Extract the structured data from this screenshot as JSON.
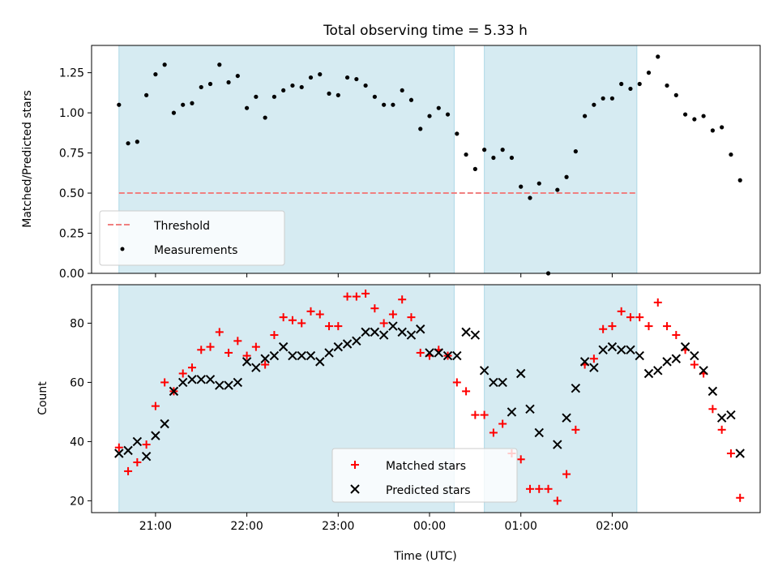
{
  "title": "Total observing time = 5.33 h",
  "colors": {
    "shade": "#add8e6",
    "threshold": "#f08080",
    "matched": "#ff0000",
    "predicted": "#000000",
    "measure": "#000000"
  },
  "chart_data": [
    {
      "type": "scatter",
      "ylabel": "Matched/Predicted stars",
      "ylim": [
        0,
        1.42
      ],
      "yticks": [
        0,
        0.25,
        0.5,
        0.75,
        1.0,
        1.25
      ],
      "ytick_labels": [
        "0.00",
        "0.25",
        "0.50",
        "0.75",
        "1.00",
        "1.25"
      ],
      "threshold": 0.5,
      "legend": {
        "position": "lower-left",
        "entries": [
          "Threshold",
          "Measurements"
        ]
      },
      "measurements": [
        [
          20.6,
          1.05
        ],
        [
          20.7,
          0.81
        ],
        [
          20.8,
          0.82
        ],
        [
          20.9,
          1.11
        ],
        [
          21.0,
          1.24
        ],
        [
          21.1,
          1.3
        ],
        [
          21.2,
          1.0
        ],
        [
          21.3,
          1.05
        ],
        [
          21.4,
          1.06
        ],
        [
          21.5,
          1.16
        ],
        [
          21.6,
          1.18
        ],
        [
          21.7,
          1.3
        ],
        [
          21.8,
          1.19
        ],
        [
          21.9,
          1.23
        ],
        [
          22.0,
          1.03
        ],
        [
          22.1,
          1.1
        ],
        [
          22.2,
          0.97
        ],
        [
          22.3,
          1.1
        ],
        [
          22.4,
          1.14
        ],
        [
          22.5,
          1.17
        ],
        [
          22.6,
          1.16
        ],
        [
          22.7,
          1.22
        ],
        [
          22.8,
          1.24
        ],
        [
          22.9,
          1.12
        ],
        [
          23.0,
          1.11
        ],
        [
          23.1,
          1.22
        ],
        [
          23.2,
          1.21
        ],
        [
          23.3,
          1.17
        ],
        [
          23.4,
          1.1
        ],
        [
          23.5,
          1.05
        ],
        [
          23.6,
          1.05
        ],
        [
          23.7,
          1.14
        ],
        [
          23.8,
          1.08
        ],
        [
          23.9,
          0.9
        ],
        [
          24.0,
          0.98
        ],
        [
          24.1,
          1.03
        ],
        [
          24.2,
          0.99
        ],
        [
          24.3,
          0.87
        ],
        [
          24.4,
          0.74
        ],
        [
          24.5,
          0.65
        ],
        [
          24.6,
          0.77
        ],
        [
          24.7,
          0.72
        ],
        [
          24.8,
          0.77
        ],
        [
          24.9,
          0.72
        ],
        [
          25.0,
          0.54
        ],
        [
          25.1,
          0.47
        ],
        [
          25.2,
          0.56
        ],
        [
          25.3,
          0.0
        ],
        [
          25.4,
          0.52
        ],
        [
          25.5,
          0.6
        ],
        [
          25.6,
          0.76
        ],
        [
          25.7,
          0.98
        ],
        [
          25.8,
          1.05
        ],
        [
          25.9,
          1.09
        ],
        [
          26.0,
          1.09
        ],
        [
          26.1,
          1.18
        ],
        [
          26.2,
          1.15
        ],
        [
          26.3,
          1.18
        ],
        [
          26.4,
          1.25
        ],
        [
          26.5,
          1.35
        ],
        [
          26.6,
          1.17
        ],
        [
          26.7,
          1.11
        ],
        [
          26.8,
          0.99
        ],
        [
          26.9,
          0.96
        ],
        [
          27.0,
          0.98
        ],
        [
          27.1,
          0.89
        ],
        [
          27.2,
          0.91
        ],
        [
          27.3,
          0.74
        ],
        [
          27.4,
          0.58
        ]
      ]
    },
    {
      "type": "scatter",
      "ylabel": "Count",
      "xlabel": "Time (UTC)",
      "ylim": [
        16,
        93
      ],
      "yticks": [
        20,
        40,
        60,
        80
      ],
      "ytick_labels": [
        "20",
        "40",
        "60",
        "80"
      ],
      "xlim": [
        20.3,
        27.62
      ],
      "xticks": [
        21,
        22,
        23,
        24,
        25,
        26
      ],
      "xtick_labels": [
        "21:00",
        "22:00",
        "23:00",
        "00:00",
        "01:00",
        "02:00"
      ],
      "observing_windows": [
        [
          20.6,
          24.27
        ],
        [
          24.6,
          26.27
        ]
      ],
      "legend": {
        "position": "lower-center",
        "entries": [
          "Matched stars",
          "Predicted stars"
        ]
      },
      "matched": [
        [
          20.6,
          38
        ],
        [
          20.7,
          30
        ],
        [
          20.8,
          33
        ],
        [
          20.9,
          39
        ],
        [
          21.0,
          52
        ],
        [
          21.1,
          60
        ],
        [
          21.2,
          57
        ],
        [
          21.3,
          63
        ],
        [
          21.4,
          65
        ],
        [
          21.5,
          71
        ],
        [
          21.6,
          72
        ],
        [
          21.7,
          77
        ],
        [
          21.8,
          70
        ],
        [
          21.9,
          74
        ],
        [
          22.0,
          69
        ],
        [
          22.1,
          72
        ],
        [
          22.2,
          66
        ],
        [
          22.3,
          76
        ],
        [
          22.4,
          82
        ],
        [
          22.5,
          81
        ],
        [
          22.6,
          80
        ],
        [
          22.7,
          84
        ],
        [
          22.8,
          83
        ],
        [
          22.9,
          79
        ],
        [
          23.0,
          79
        ],
        [
          23.1,
          89
        ],
        [
          23.2,
          89
        ],
        [
          23.3,
          90
        ],
        [
          23.4,
          85
        ],
        [
          23.5,
          80
        ],
        [
          23.6,
          83
        ],
        [
          23.7,
          88
        ],
        [
          23.8,
          82
        ],
        [
          23.9,
          70
        ],
        [
          24.0,
          69
        ],
        [
          24.1,
          71
        ],
        [
          24.2,
          69
        ],
        [
          24.3,
          60
        ],
        [
          24.4,
          57
        ],
        [
          24.5,
          49
        ],
        [
          24.6,
          49
        ],
        [
          24.7,
          43
        ],
        [
          24.8,
          46
        ],
        [
          24.9,
          36
        ],
        [
          25.0,
          34
        ],
        [
          25.1,
          24
        ],
        [
          25.2,
          24
        ],
        [
          25.3,
          24
        ],
        [
          25.4,
          20
        ],
        [
          25.5,
          29
        ],
        [
          25.6,
          44
        ],
        [
          25.7,
          66
        ],
        [
          25.8,
          68
        ],
        [
          25.9,
          78
        ],
        [
          26.0,
          79
        ],
        [
          26.1,
          84
        ],
        [
          26.2,
          82
        ],
        [
          26.3,
          82
        ],
        [
          26.4,
          79
        ],
        [
          26.5,
          87
        ],
        [
          26.6,
          79
        ],
        [
          26.7,
          76
        ],
        [
          26.8,
          71
        ],
        [
          26.9,
          66
        ],
        [
          27.0,
          63
        ],
        [
          27.1,
          51
        ],
        [
          27.2,
          44
        ],
        [
          27.3,
          36
        ],
        [
          27.4,
          21
        ]
      ],
      "predicted": [
        [
          20.6,
          36
        ],
        [
          20.7,
          37
        ],
        [
          20.8,
          40
        ],
        [
          20.9,
          35
        ],
        [
          21.0,
          42
        ],
        [
          21.1,
          46
        ],
        [
          21.2,
          57
        ],
        [
          21.3,
          60
        ],
        [
          21.4,
          61
        ],
        [
          21.5,
          61
        ],
        [
          21.6,
          61
        ],
        [
          21.7,
          59
        ],
        [
          21.8,
          59
        ],
        [
          21.9,
          60
        ],
        [
          22.0,
          67
        ],
        [
          22.1,
          65
        ],
        [
          22.2,
          68
        ],
        [
          22.3,
          69
        ],
        [
          22.4,
          72
        ],
        [
          22.5,
          69
        ],
        [
          22.6,
          69
        ],
        [
          22.7,
          69
        ],
        [
          22.8,
          67
        ],
        [
          22.9,
          70
        ],
        [
          23.0,
          72
        ],
        [
          23.1,
          73
        ],
        [
          23.2,
          74
        ],
        [
          23.3,
          77
        ],
        [
          23.4,
          77
        ],
        [
          23.5,
          76
        ],
        [
          23.6,
          79
        ],
        [
          23.7,
          77
        ],
        [
          23.8,
          76
        ],
        [
          23.9,
          78
        ],
        [
          24.0,
          70
        ],
        [
          24.1,
          70
        ],
        [
          24.2,
          69
        ],
        [
          24.3,
          69
        ],
        [
          24.4,
          77
        ],
        [
          24.5,
          76
        ],
        [
          24.6,
          64
        ],
        [
          24.7,
          60
        ],
        [
          24.8,
          60
        ],
        [
          24.9,
          50
        ],
        [
          25.0,
          63
        ],
        [
          25.1,
          51
        ],
        [
          25.2,
          43
        ],
        [
          25.3,
          null
        ],
        [
          25.4,
          39
        ],
        [
          25.5,
          48
        ],
        [
          25.6,
          58
        ],
        [
          25.7,
          67
        ],
        [
          25.8,
          65
        ],
        [
          25.9,
          71
        ],
        [
          26.0,
          72
        ],
        [
          26.1,
          71
        ],
        [
          26.2,
          71
        ],
        [
          26.3,
          69
        ],
        [
          26.4,
          63
        ],
        [
          26.5,
          64
        ],
        [
          26.6,
          67
        ],
        [
          26.7,
          68
        ],
        [
          26.8,
          72
        ],
        [
          26.9,
          69
        ],
        [
          27.0,
          64
        ],
        [
          27.1,
          57
        ],
        [
          27.2,
          48
        ],
        [
          27.3,
          49
        ],
        [
          27.4,
          36
        ]
      ]
    }
  ]
}
